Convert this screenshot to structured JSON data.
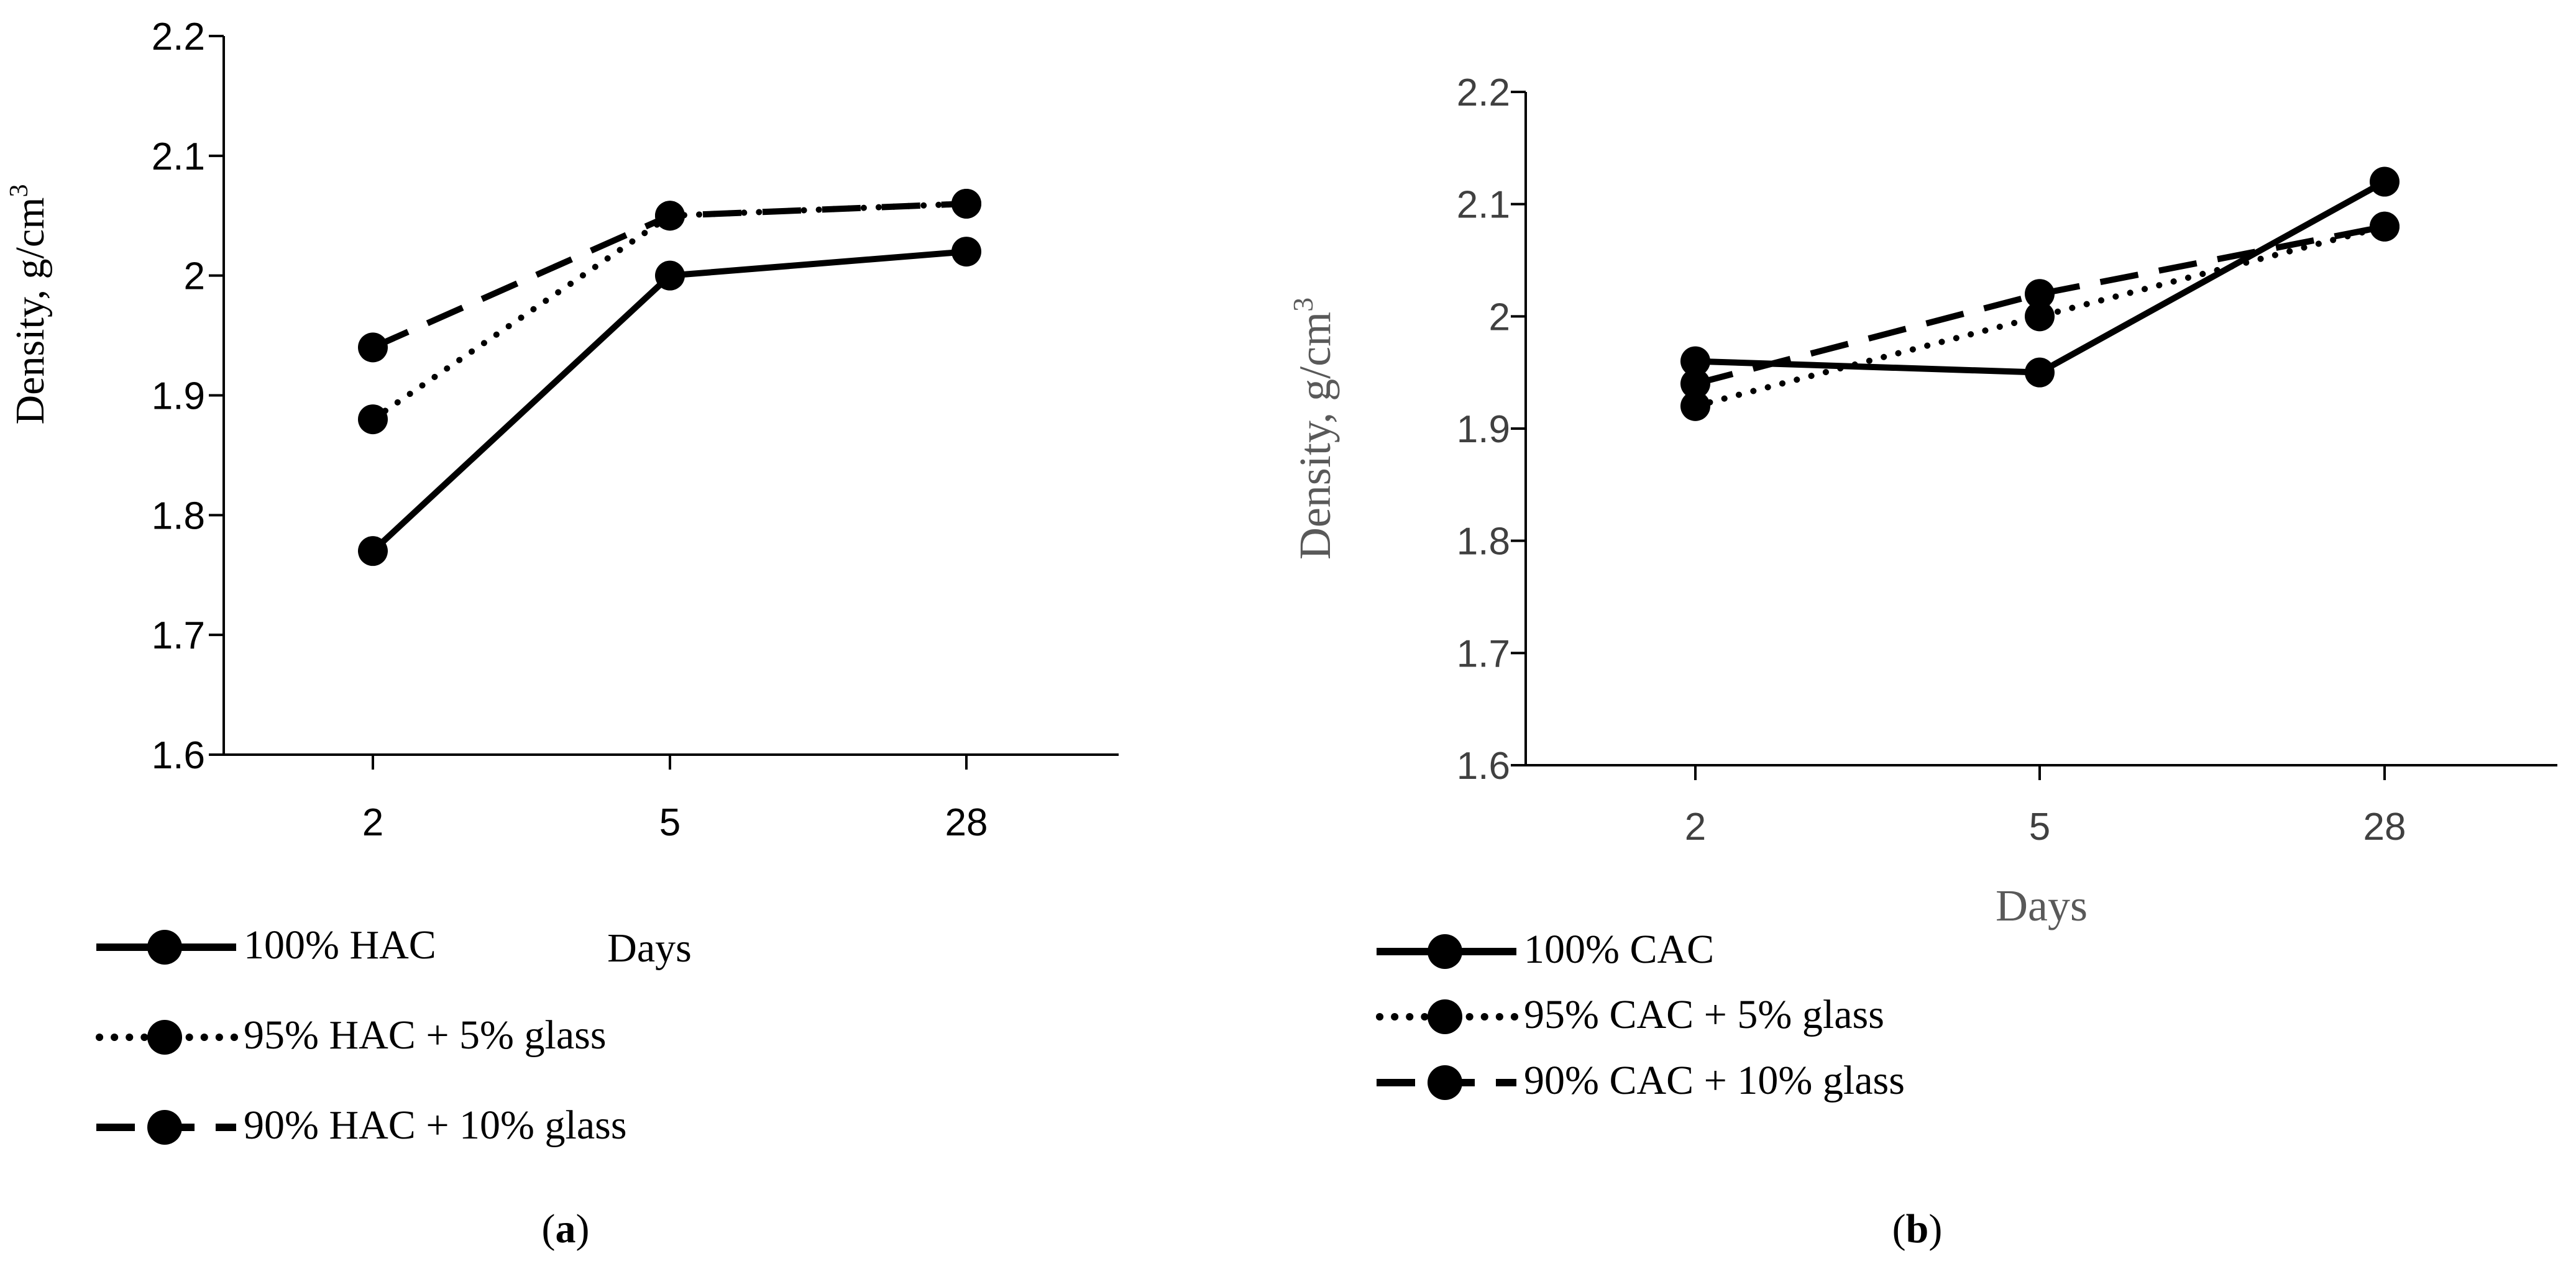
{
  "chart_data": [
    {
      "type": "line",
      "panel_label": "a",
      "categories": [
        "2",
        "5",
        "28"
      ],
      "xlabel": "Days",
      "ylabel": "Density, g/cm",
      "ylabel_superscript": "3",
      "ylim": [
        1.6,
        2.2
      ],
      "yticks": [
        "1.6",
        "1.7",
        "1.8",
        "1.9",
        "2",
        "2.1",
        "2.2"
      ],
      "series": [
        {
          "name": "100% HAC",
          "style": "solid",
          "values": [
            1.77,
            2.0,
            2.02
          ]
        },
        {
          "name": "95% HAC + 5% glass",
          "style": "dotted",
          "values": [
            1.88,
            2.05,
            2.06
          ]
        },
        {
          "name": "90% HAC + 10% glass",
          "style": "dashed",
          "values": [
            1.94,
            2.05,
            2.06
          ]
        }
      ]
    },
    {
      "type": "line",
      "panel_label": "b",
      "categories": [
        "2",
        "5",
        "28"
      ],
      "xlabel": "Days",
      "ylabel": "Density, g/cm",
      "ylabel_superscript": "3",
      "ylim": [
        1.6,
        2.2
      ],
      "yticks": [
        "1.6",
        "1.7",
        "1.8",
        "1.9",
        "2",
        "2.1",
        "2.2"
      ],
      "series": [
        {
          "name": "100% CAC",
          "style": "solid",
          "values": [
            1.96,
            1.95,
            2.12
          ]
        },
        {
          "name": "95% CAC + 5% glass",
          "style": "dotted",
          "values": [
            1.92,
            2.0,
            2.08
          ]
        },
        {
          "name": "90% CAC + 10% glass",
          "style": "dashed",
          "values": [
            1.94,
            2.02,
            2.08
          ]
        }
      ]
    }
  ],
  "colors": {
    "line": "#000000",
    "axis_label_b": "#595959",
    "tick_b": "#404040"
  }
}
